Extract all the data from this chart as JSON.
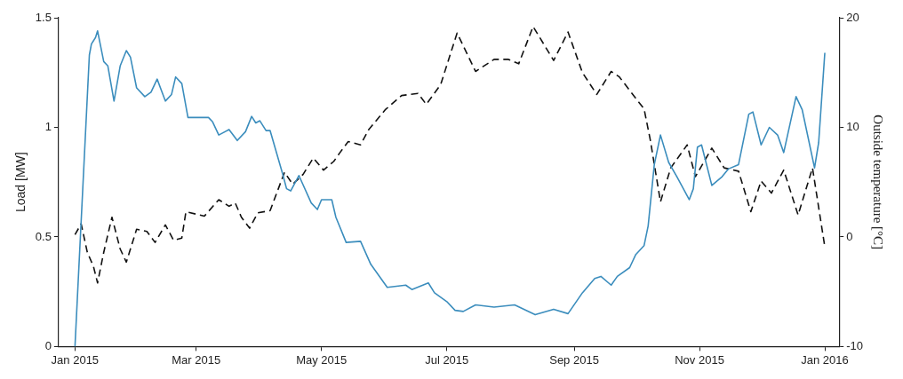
{
  "chart_data": {
    "type": "line",
    "ylabel": "Load [MW]",
    "y2label": "Outside temperature [°C]",
    "xlim": [
      "2014-12-24",
      "2016-01-08"
    ],
    "xticks": [
      {
        "value": "2015-01-01",
        "label": "Jan 2015"
      },
      {
        "value": "2015-03-01",
        "label": "Mar 2015"
      },
      {
        "value": "2015-05-01",
        "label": "May 2015"
      },
      {
        "value": "2015-07-01",
        "label": "Jul 2015"
      },
      {
        "value": "2015-09-01",
        "label": "Sep 2015"
      },
      {
        "value": "2015-11-01",
        "label": "Nov 2015"
      },
      {
        "value": "2016-01-01",
        "label": "Jan 2016"
      }
    ],
    "ylim": [
      0,
      1.5
    ],
    "yticks": [
      0,
      0.5,
      1,
      1.5
    ],
    "y2lim": [
      -10,
      20
    ],
    "y2ticks": [
      -10,
      0,
      10,
      20
    ],
    "grid": false,
    "legend": false,
    "series": [
      {
        "color": "#3b8dbd",
        "line_style": "solid",
        "x": [
          "2015-01-01",
          "2015-01-08",
          "2015-01-09",
          "2015-01-11",
          "2015-01-12",
          "2015-01-15",
          "2015-01-17",
          "2015-01-20",
          "2015-01-23",
          "2015-01-26",
          "2015-01-28",
          "2015-01-31",
          "2015-02-04",
          "2015-02-07",
          "2015-02-10",
          "2015-02-12",
          "2015-02-14",
          "2015-02-17",
          "2015-02-19",
          "2015-02-22",
          "2015-02-25",
          "2015-03-07",
          "2015-03-09",
          "2015-03-12",
          "2015-03-17",
          "2015-03-21",
          "2015-03-25",
          "2015-03-28",
          "2015-03-30",
          "2015-04-01",
          "2015-04-04",
          "2015-04-06",
          "2015-04-12",
          "2015-04-14",
          "2015-04-16",
          "2015-04-20",
          "2015-04-26",
          "2015-04-29",
          "2015-05-01",
          "2015-05-06",
          "2015-05-08",
          "2015-05-13",
          "2015-05-20",
          "2015-05-25",
          "2015-06-02",
          "2015-06-11",
          "2015-06-14",
          "2015-06-22",
          "2015-06-25",
          "2015-07-01",
          "2015-07-05",
          "2015-07-09",
          "2015-07-15",
          "2015-07-24",
          "2015-08-03",
          "2015-08-13",
          "2015-08-22",
          "2015-08-29",
          "2015-09-05",
          "2015-09-11",
          "2015-09-14",
          "2015-09-19",
          "2015-09-22",
          "2015-09-28",
          "2015-10-01",
          "2015-10-05",
          "2015-10-07",
          "2015-10-10",
          "2015-10-13",
          "2015-10-17",
          "2015-10-21",
          "2015-10-27",
          "2015-10-29",
          "2015-10-31",
          "2015-11-02",
          "2015-11-07",
          "2015-11-12",
          "2015-11-15",
          "2015-11-20",
          "2015-11-25",
          "2015-11-27",
          "2015-12-01",
          "2015-12-05",
          "2015-12-09",
          "2015-12-12",
          "2015-12-18",
          "2015-12-21",
          "2015-12-27",
          "2015-12-29",
          "2016-01-01"
        ],
        "values": [
          0,
          1.33,
          1.38,
          1.41,
          1.44,
          1.3,
          1.28,
          1.12,
          1.28,
          1.35,
          1.32,
          1.18,
          1.14,
          1.16,
          1.22,
          1.17,
          1.12,
          1.15,
          1.23,
          1.2,
          1.045,
          1.045,
          1.025,
          0.965,
          0.99,
          0.94,
          0.98,
          1.05,
          1.02,
          1.03,
          0.985,
          0.985,
          0.79,
          0.72,
          0.71,
          0.78,
          0.655,
          0.625,
          0.67,
          0.67,
          0.59,
          0.475,
          0.48,
          0.375,
          0.27,
          0.28,
          0.26,
          0.29,
          0.245,
          0.205,
          0.165,
          0.16,
          0.19,
          0.18,
          0.19,
          0.145,
          0.17,
          0.15,
          0.245,
          0.31,
          0.32,
          0.28,
          0.32,
          0.36,
          0.42,
          0.46,
          0.55,
          0.83,
          0.965,
          0.84,
          0.775,
          0.67,
          0.72,
          0.91,
          0.92,
          0.735,
          0.775,
          0.81,
          0.83,
          1.06,
          1.07,
          0.92,
          1.0,
          0.965,
          0.885,
          1.14,
          1.08,
          0.815,
          0.93,
          1.34
        ]
      },
      {
        "color": "#111111",
        "line_style": "dashed",
        "axis": "y2",
        "x": [
          "2015-01-01",
          "2015-01-04",
          "2015-01-07",
          "2015-01-10",
          "2015-01-12",
          "2015-01-15",
          "2015-01-19",
          "2015-01-23",
          "2015-01-26",
          "2015-01-31",
          "2015-02-05",
          "2015-02-09",
          "2015-02-14",
          "2015-02-18",
          "2015-02-22",
          "2015-02-24",
          "2015-03-05",
          "2015-03-12",
          "2015-03-17",
          "2015-03-20",
          "2015-03-23",
          "2015-03-27",
          "2015-03-31",
          "2015-04-06",
          "2015-04-13",
          "2015-04-17",
          "2015-04-22",
          "2015-04-27",
          "2015-05-02",
          "2015-05-07",
          "2015-05-10",
          "2015-05-14",
          "2015-05-20",
          "2015-05-24",
          "2015-06-01",
          "2015-06-09",
          "2015-06-17",
          "2015-06-21",
          "2015-06-28",
          "2015-07-06",
          "2015-07-15",
          "2015-07-24",
          "2015-07-31",
          "2015-08-05",
          "2015-08-12",
          "2015-08-22",
          "2015-08-29",
          "2015-09-05",
          "2015-09-12",
          "2015-09-19",
          "2015-09-23",
          "2015-10-02",
          "2015-10-05",
          "2015-10-08",
          "2015-10-13",
          "2015-10-18",
          "2015-10-26",
          "2015-10-30",
          "2015-11-07",
          "2015-11-13",
          "2015-11-20",
          "2015-11-26",
          "2015-12-01",
          "2015-12-06",
          "2015-12-12",
          "2015-12-19",
          "2015-12-26",
          "2016-01-01"
        ],
        "values": [
          0.2,
          1.2,
          -1.4,
          -2.7,
          -4.2,
          -1.4,
          1.8,
          -1.1,
          -2.3,
          0.7,
          0.5,
          -0.5,
          1.1,
          -0.3,
          -0.1,
          2.3,
          1.9,
          3.4,
          2.8,
          3.1,
          1.8,
          0.8,
          2.2,
          2.4,
          5.9,
          4.8,
          5.7,
          7.2,
          6.1,
          6.9,
          7.7,
          8.7,
          8.4,
          9.8,
          11.6,
          12.9,
          13.1,
          12.1,
          13.9,
          18.6,
          15.1,
          16.2,
          16.2,
          15.8,
          19.2,
          16.1,
          18.7,
          15,
          13,
          15.1,
          14.6,
          12.4,
          11.7,
          8.9,
          3.2,
          6.3,
          8.4,
          5.5,
          8.1,
          6.3,
          6,
          2.3,
          5.1,
          4,
          6.1,
          2,
          6.3,
          -0.9
        ]
      }
    ]
  }
}
